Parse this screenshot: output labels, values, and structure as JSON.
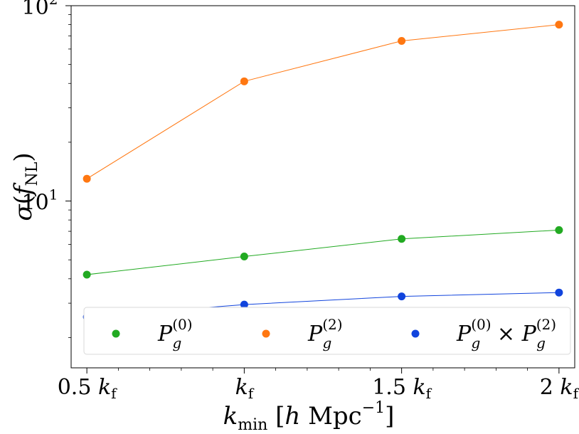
{
  "chart_data": {
    "type": "line",
    "yscale": "log",
    "categories": [
      "0.5 k_f",
      "k_f",
      "1.5 k_f",
      "2 k_f"
    ],
    "x": [
      0.5,
      1.0,
      1.5,
      2.0
    ],
    "xlim": [
      0.45,
      2.05
    ],
    "ylim": [
      1.4,
      100
    ],
    "xlabel": {
      "base": "k",
      "sub": "min",
      "rest": "[h Mpc",
      "sup": "−1",
      "close": "]"
    },
    "ylabel": {
      "text": "σ(f",
      "sub": "NL",
      "close": ")"
    },
    "xticks": [
      {
        "pre": "0.5",
        "k": "k",
        "sub": "f"
      },
      {
        "pre": "",
        "k": "k",
        "sub": "f"
      },
      {
        "pre": "1.5",
        "k": "k",
        "sub": "f"
      },
      {
        "pre": "2",
        "k": "k",
        "sub": "f"
      }
    ],
    "yticks": [
      {
        "base": "10",
        "exp": "1",
        "value": 10
      },
      {
        "base": "10",
        "exp": "2",
        "value": 100
      }
    ],
    "legend_position": "bottom",
    "series": [
      {
        "name": "P_g^(0)",
        "label_base": "P",
        "label_sub": "g",
        "label_sup": "(0)",
        "color": "#22aa22",
        "values": [
          4.2,
          5.2,
          6.4,
          7.1
        ]
      },
      {
        "name": "P_g^(2)",
        "label_base": "P",
        "label_sub": "g",
        "label_sup": "(2)",
        "color": "#ff7711",
        "values": [
          13.0,
          41.0,
          66.0,
          80.0
        ]
      },
      {
        "name": "P_g^(0) × P_g^(2)",
        "label_base": "P",
        "label_sub": "g",
        "label_sup": "(0)",
        "label_mid": " × ",
        "label_base2": "P",
        "label_sub2": "g",
        "label_sup2": "(2)",
        "color": "#1144dd",
        "values": [
          2.55,
          2.95,
          3.25,
          3.4
        ]
      }
    ]
  }
}
